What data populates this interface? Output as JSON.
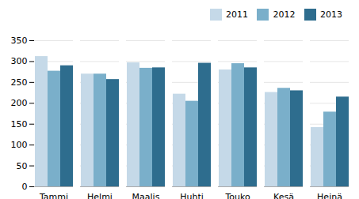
{
  "chart_data": {
    "type": "bar",
    "categories": [
      "Tammi",
      "Helmi",
      "Maalis",
      "Huhti",
      "Touko",
      "Kesä",
      "Heinä"
    ],
    "series": [
      {
        "name": "2011",
        "color": "#c5d9e8",
        "values": [
          312,
          270,
          297,
          222,
          280,
          226,
          142
        ]
      },
      {
        "name": "2012",
        "color": "#7aafca",
        "values": [
          277,
          270,
          284,
          205,
          295,
          236,
          179
        ]
      },
      {
        "name": "2013",
        "color": "#2e6d8e",
        "values": [
          290,
          257,
          285,
          296,
          285,
          230,
          215
        ]
      }
    ],
    "ylim": [
      0,
      350
    ],
    "yticks": [
      0,
      50,
      100,
      150,
      200,
      250,
      300,
      350
    ],
    "grid": true,
    "legend": "upper right"
  }
}
